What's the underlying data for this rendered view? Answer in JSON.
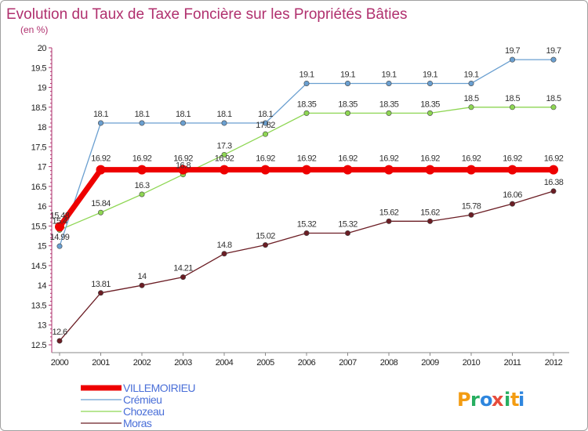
{
  "chart_data": {
    "type": "line",
    "title": "Evolution du Taux de Taxe Foncière sur les Propriétés Bâties",
    "ylabel": "(en %)",
    "xlabel": "",
    "ylim": [
      12.5,
      20
    ],
    "yticks": [
      "12.5",
      "13",
      "13.5",
      "14",
      "14.5",
      "15",
      "15.5",
      "16",
      "16.5",
      "17",
      "17.5",
      "18",
      "18.5",
      "19",
      "19.5",
      "20"
    ],
    "categories": [
      "2000",
      "2001",
      "2002",
      "2003",
      "2004",
      "2005",
      "2006",
      "2007",
      "2008",
      "2009",
      "2010",
      "2011",
      "2012"
    ],
    "series": [
      {
        "name": "Moras",
        "color": "#6b1d24",
        "values": [
          12.6,
          13.81,
          14,
          14.21,
          14.8,
          15.02,
          15.32,
          15.32,
          15.62,
          15.62,
          15.78,
          16.06,
          16.38
        ],
        "labels": [
          "12.6",
          "13.81",
          "14",
          "14.21",
          "14.8",
          "15.02",
          "15.32",
          "15.32",
          "15.62",
          "15.62",
          "15.78",
          "16.06",
          "16.38"
        ]
      },
      {
        "name": "Chozeau",
        "color": "#8ed653",
        "values": [
          15.4,
          15.84,
          16.3,
          16.8,
          17.3,
          17.82,
          18.35,
          18.35,
          18.35,
          18.35,
          18.5,
          18.5,
          18.5
        ],
        "labels": [
          "15.4",
          "15.84",
          "16.3",
          "16.8",
          "17.3",
          "17.82",
          "18.35",
          "18.35",
          "18.35",
          "18.35",
          "18.5",
          "18.5",
          "18.5"
        ]
      },
      {
        "name": "Crémieu",
        "color": "#6a9fd0",
        "values": [
          14.99,
          18.1,
          18.1,
          18.1,
          18.1,
          18.1,
          19.1,
          19.1,
          19.1,
          19.1,
          19.1,
          19.7,
          19.7
        ],
        "labels": [
          "14.99",
          "18.1",
          "18.1",
          "18.1",
          "18.1",
          "18.1",
          "19.1",
          "19.1",
          "19.1",
          "19.1",
          "19.1",
          "19.7",
          "19.7"
        ]
      },
      {
        "name": "VILLEMOIRIEU",
        "color": "#ee0000",
        "values": [
          15.48,
          16.92,
          16.92,
          16.92,
          16.92,
          16.92,
          16.92,
          16.92,
          16.92,
          16.92,
          16.92,
          16.92,
          16.92
        ],
        "labels": [
          "15.48",
          "16.92",
          "16.92",
          "16.92",
          "16.92",
          "16.92",
          "16.92",
          "16.92",
          "16.92",
          "16.92",
          "16.92",
          "16.92",
          "16.92"
        ]
      }
    ],
    "legend": [
      "VILLEMOIRIEU",
      "Crémieu",
      "Chozeau",
      "Moras"
    ],
    "grid": false
  },
  "legend_colors": {
    "VILLEMOIRIEU": "#ee0000",
    "Crémieu": "#6a9fd0",
    "Chozeau": "#8ed653",
    "Moras": "#6b1d24",
    "text": "#4a6fd8"
  },
  "logo": {
    "letters": [
      "P",
      "r",
      "o",
      "x",
      "i",
      "t",
      "i"
    ],
    "colors": [
      "#f39c12",
      "#27ae60",
      "#2e86de",
      "#e74c3c",
      "#27ae60",
      "#f39c12",
      "#2e86de"
    ]
  }
}
